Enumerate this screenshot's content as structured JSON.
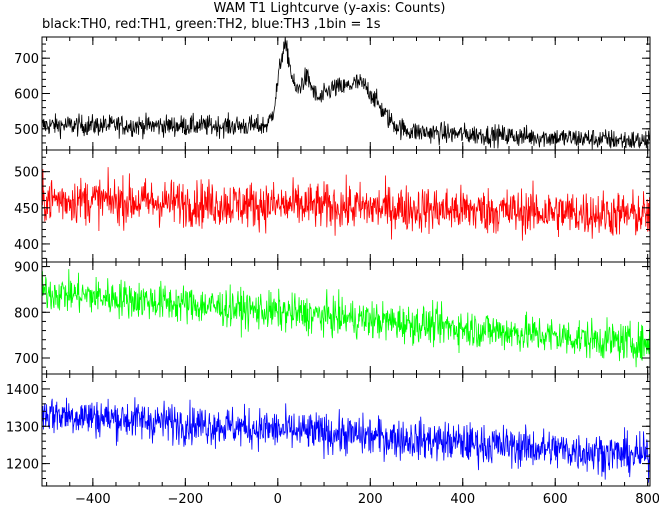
{
  "title": "WAM T1 Lightcurve (y-axis: Counts)",
  "subtitle": "black:TH0, red:TH1, green:TH2, blue:TH3 ,1bin = 1s",
  "chart_data": [
    {
      "type": "line",
      "name": "TH0",
      "color": "#000000",
      "xlim": [
        -510,
        805
      ],
      "ylim": [
        440,
        760
      ],
      "yticks": [
        500,
        600,
        700
      ],
      "noise": 25,
      "baseline": [
        [
          -510,
          510
        ],
        [
          0,
          508
        ],
        [
          400,
          485
        ],
        [
          805,
          465
        ]
      ],
      "peaks": [
        {
          "center": 15,
          "width": 14,
          "height": 220
        },
        {
          "center": 60,
          "width": 16,
          "height": 130
        },
        {
          "center": 110,
          "width": 22,
          "height": 70
        },
        {
          "center": 175,
          "width": 40,
          "height": 130
        }
      ]
    },
    {
      "type": "line",
      "name": "TH1",
      "color": "#ff0000",
      "xlim": [
        -510,
        805
      ],
      "ylim": [
        375,
        530
      ],
      "yticks": [
        400,
        450,
        500
      ],
      "noise": 27,
      "baseline": [
        [
          -510,
          462
        ],
        [
          805,
          440
        ]
      ],
      "peaks": []
    },
    {
      "type": "line",
      "name": "TH2",
      "color": "#00ff00",
      "xlim": [
        -510,
        805
      ],
      "ylim": [
        665,
        910
      ],
      "yticks": [
        700,
        800,
        900
      ],
      "noise": 35,
      "baseline": [
        [
          -510,
          845
        ],
        [
          805,
          730
        ]
      ],
      "peaks": []
    },
    {
      "type": "line",
      "name": "TH3",
      "color": "#0000ff",
      "xlim": [
        -510,
        805
      ],
      "ylim": [
        1140,
        1440
      ],
      "yticks": [
        1200,
        1300,
        1400
      ],
      "noise": 45,
      "baseline": [
        [
          -510,
          1335
        ],
        [
          805,
          1220
        ]
      ],
      "peaks": []
    }
  ],
  "x_axis": {
    "ticks": [
      -400,
      -200,
      0,
      200,
      400,
      600,
      800
    ]
  }
}
